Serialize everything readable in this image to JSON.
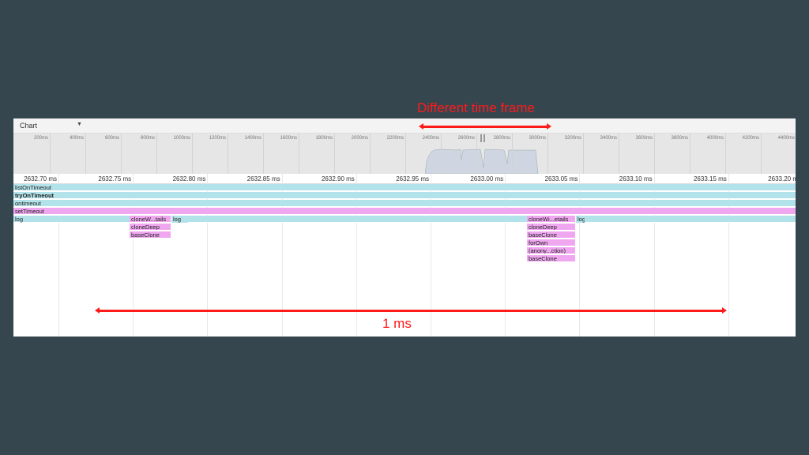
{
  "annotations": {
    "top_label": "Different time frame",
    "bottom_label": "1 ms",
    "color": "#ff1a1a"
  },
  "toolbar": {
    "view_mode": "Chart",
    "dropdown_icon": "triangle-down"
  },
  "overview": {
    "ticks": [
      "200ms",
      "400ms",
      "600ms",
      "800ms",
      "1000ms",
      "1200ms",
      "1400ms",
      "1600ms",
      "1800ms",
      "2000ms",
      "2200ms",
      "2400ms",
      "2600ms",
      "2800ms",
      "3000ms",
      "3200ms",
      "3400ms",
      "3600ms",
      "3800ms",
      "4000ms",
      "4200ms",
      "4400ms"
    ]
  },
  "ruler": {
    "ticks": [
      "2632.70 ms",
      "2632.75 ms",
      "2632.80 ms",
      "2632.85 ms",
      "2632.90 ms",
      "2632.95 ms",
      "2633.00 ms",
      "2633.05 ms",
      "2633.10 ms",
      "2633.15 ms",
      "2633.20 ms"
    ]
  },
  "rows": [
    {
      "label": "listOnTimeout",
      "color": "#b3e3ea"
    },
    {
      "label": "tryOnTimeout",
      "color": "#b3e3ea"
    },
    {
      "label": "ontimeout",
      "color": "#b3e3ea"
    },
    {
      "label": "setTimeout",
      "color": "#efa8ef"
    },
    {
      "label": "log",
      "color": "#b3e3ea"
    }
  ],
  "stacks": [
    {
      "frames": [
        "cloneW...tails",
        "cloneDeep",
        "baseClone"
      ],
      "after": "log"
    },
    {
      "frames": [
        "cloneWi...etails",
        "cloneDeep",
        "baseClone",
        "forOwn",
        "(anony...ction)",
        "baseClone"
      ],
      "after": "log"
    }
  ]
}
